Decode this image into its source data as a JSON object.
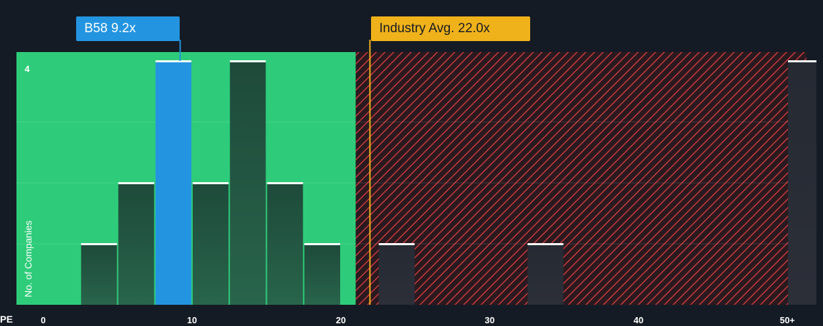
{
  "chart_data": {
    "type": "bar",
    "title": "",
    "xlabel": "PE",
    "ylabel": "No. of Companies",
    "x_ticks": [
      "0",
      "10",
      "20",
      "30",
      "40",
      "50+"
    ],
    "y_ticks": [
      "4"
    ],
    "xlim": [
      0,
      52
    ],
    "ylim": [
      0,
      4
    ],
    "bins": [
      {
        "x0": 2.5,
        "x1": 5.0,
        "count": 1,
        "highlight": false
      },
      {
        "x0": 5.0,
        "x1": 7.5,
        "count": 2,
        "highlight": false
      },
      {
        "x0": 7.5,
        "x1": 10.0,
        "count": 4,
        "highlight": true
      },
      {
        "x0": 10.0,
        "x1": 12.5,
        "count": 2,
        "highlight": false
      },
      {
        "x0": 12.5,
        "x1": 15.0,
        "count": 4,
        "highlight": false
      },
      {
        "x0": 15.0,
        "x1": 17.5,
        "count": 2,
        "highlight": false
      },
      {
        "x0": 17.5,
        "x1": 20.0,
        "count": 1,
        "highlight": false
      },
      {
        "x0": 22.5,
        "x1": 25.0,
        "count": 1,
        "highlight": false
      },
      {
        "x0": 32.5,
        "x1": 35.0,
        "count": 1,
        "highlight": false
      },
      {
        "x0": 50.0,
        "x1": 52.0,
        "count": 4,
        "highlight": false
      }
    ],
    "fair_zone_max": 21.0,
    "company": {
      "label": "B58 9.2x",
      "value": 9.2
    },
    "industry_avg": {
      "label": "Industry Avg. 22.0x",
      "value": 22.0
    },
    "colors": {
      "background": "#151b24",
      "fair_zone": "#2ecc7a",
      "overvalued_zone": "#d63a3a",
      "company_bar": "#2394e0",
      "industry_line": "#f0b21b",
      "bar_dark": "#1e4a3a",
      "bar_top": "#ffffff"
    }
  }
}
